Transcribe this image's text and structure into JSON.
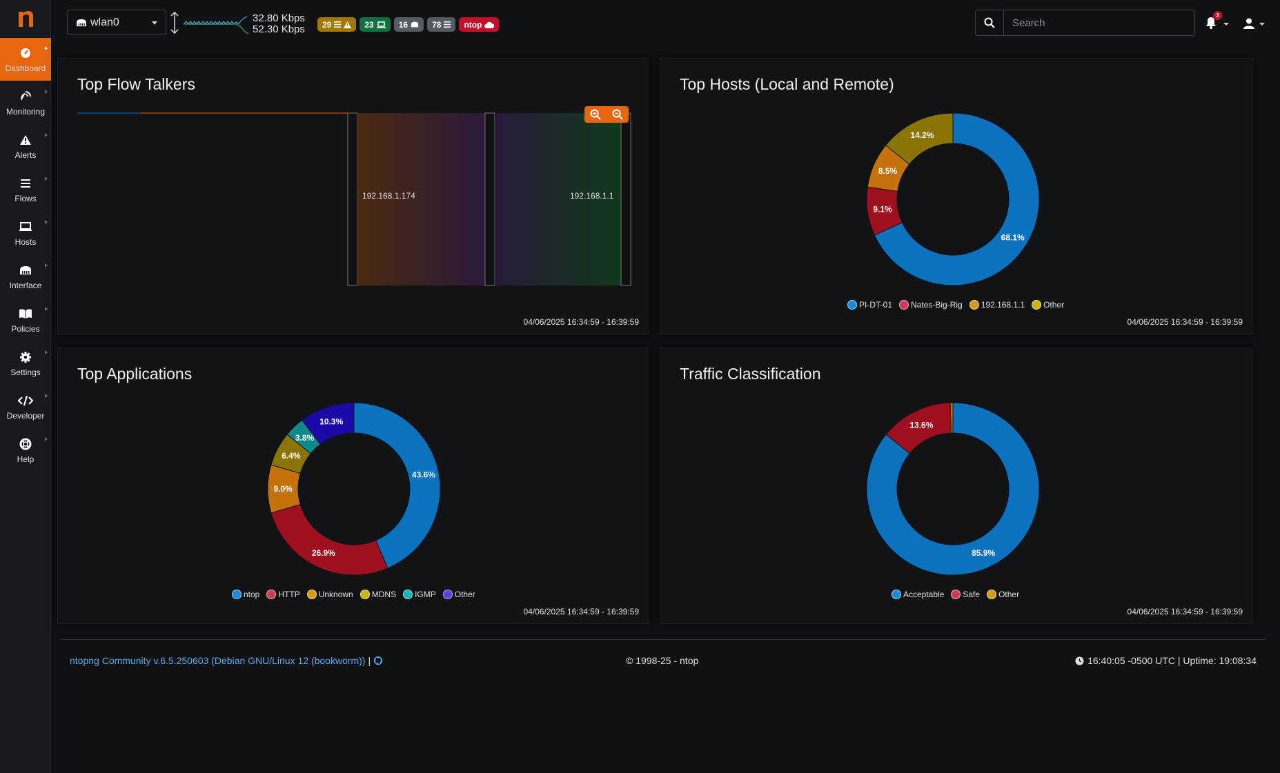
{
  "sidebar": {
    "logo": "n",
    "items": [
      {
        "label": "Dashboard",
        "icon": "gauge-icon"
      },
      {
        "label": "Monitoring",
        "icon": "satellite-dish-icon"
      },
      {
        "label": "Alerts",
        "icon": "warning-icon"
      },
      {
        "label": "Flows",
        "icon": "list-icon"
      },
      {
        "label": "Hosts",
        "icon": "laptop-icon"
      },
      {
        "label": "Interface",
        "icon": "ethernet-icon"
      },
      {
        "label": "Policies",
        "icon": "book-icon"
      },
      {
        "label": "Settings",
        "icon": "gear-icon"
      },
      {
        "label": "Developer",
        "icon": "code-icon"
      },
      {
        "label": "Help",
        "icon": "lifering-icon"
      }
    ]
  },
  "topbar": {
    "interface": "wlan0",
    "upload": "32.80 Kbps",
    "download": "52.30 Kbps",
    "badges": {
      "alerts": "29",
      "hosts": "23",
      "devices": "16",
      "flows": "78",
      "ntop": "ntop"
    },
    "search_placeholder": "Search",
    "notifications": "3"
  },
  "cards": {
    "flow_talkers": {
      "title": "Top Flow Talkers",
      "time": "04/06/2025 16:34:59 - 16:39:59",
      "node_left": "192.168.1.174",
      "node_right": "192.168.1.1"
    },
    "top_hosts": {
      "title": "Top Hosts (Local and Remote)",
      "time": "04/06/2025 16:34:59 - 16:39:59",
      "legend": [
        "PI-DT-01",
        "Nates-Big-Rig",
        "192.168.1.1",
        "Other"
      ]
    },
    "top_apps": {
      "title": "Top Applications",
      "time": "04/06/2025 16:34:59 - 16:39:59",
      "legend": [
        "ntop",
        "HTTP",
        "Unknown",
        "MDNS",
        "IGMP",
        "Other"
      ]
    },
    "traffic_class": {
      "title": "Traffic Classification",
      "time": "04/06/2025 16:34:59 - 16:39:59",
      "legend": [
        "Acceptable",
        "Safe",
        "Other"
      ]
    }
  },
  "colors": {
    "accent": "#e8650f",
    "blue": "#0b72bf",
    "red": "#9e0f20",
    "orange": "#c4720d",
    "olive": "#8a7406",
    "teal": "#0e8a8a",
    "indigo": "#1b0aa6"
  },
  "chart_data": [
    {
      "type": "pie",
      "name": "top_hosts",
      "categories": [
        "PI-DT-01",
        "Nates-Big-Rig",
        "192.168.1.1",
        "Other"
      ],
      "values": [
        68.1,
        9.1,
        8.5,
        14.2
      ],
      "labels": [
        "68.1%",
        "9.1%",
        "8.5%",
        "14.2%"
      ],
      "colors": [
        "#0b72bf",
        "#9e0f20",
        "#c4720d",
        "#8a7406"
      ],
      "legend_colors": [
        "#1a8ad6",
        "#d13a55",
        "#d79a12",
        "#c9b50f"
      ]
    },
    {
      "type": "pie",
      "name": "top_apps",
      "categories": [
        "ntop",
        "HTTP",
        "Unknown",
        "MDNS",
        "IGMP",
        "Other"
      ],
      "values": [
        43.6,
        26.9,
        9.0,
        6.4,
        3.8,
        10.3
      ],
      "labels": [
        "43.6%",
        "26.9%",
        "9.0%",
        "6.4%",
        "3.8%",
        "10.3%"
      ],
      "colors": [
        "#0b72bf",
        "#9e0f20",
        "#c4720d",
        "#8a7406",
        "#0e8a8a",
        "#1b0aa6"
      ],
      "legend_colors": [
        "#1a8ad6",
        "#d13a55",
        "#d79a12",
        "#c9b50f",
        "#1ab3b3",
        "#5a3ee0"
      ]
    },
    {
      "type": "pie",
      "name": "traffic_class",
      "categories": [
        "Acceptable",
        "Safe",
        "Other"
      ],
      "values": [
        85.9,
        13.6,
        0.5
      ],
      "labels": [
        "85.9%",
        "13.6%",
        ""
      ],
      "colors": [
        "#0b72bf",
        "#9e0f20",
        "#c4720d"
      ],
      "legend_colors": [
        "#1a8ad6",
        "#d13a55",
        "#d79a12"
      ]
    }
  ],
  "footer": {
    "version": "ntopng Community v.6.5.250603 (Debian GNU/Linux 12 (bookworm))",
    "separator": "|",
    "copyright": "© 1998-25 - ntop",
    "clock": "16:40:05 -0500 UTC | Uptime: 19:08:34"
  }
}
